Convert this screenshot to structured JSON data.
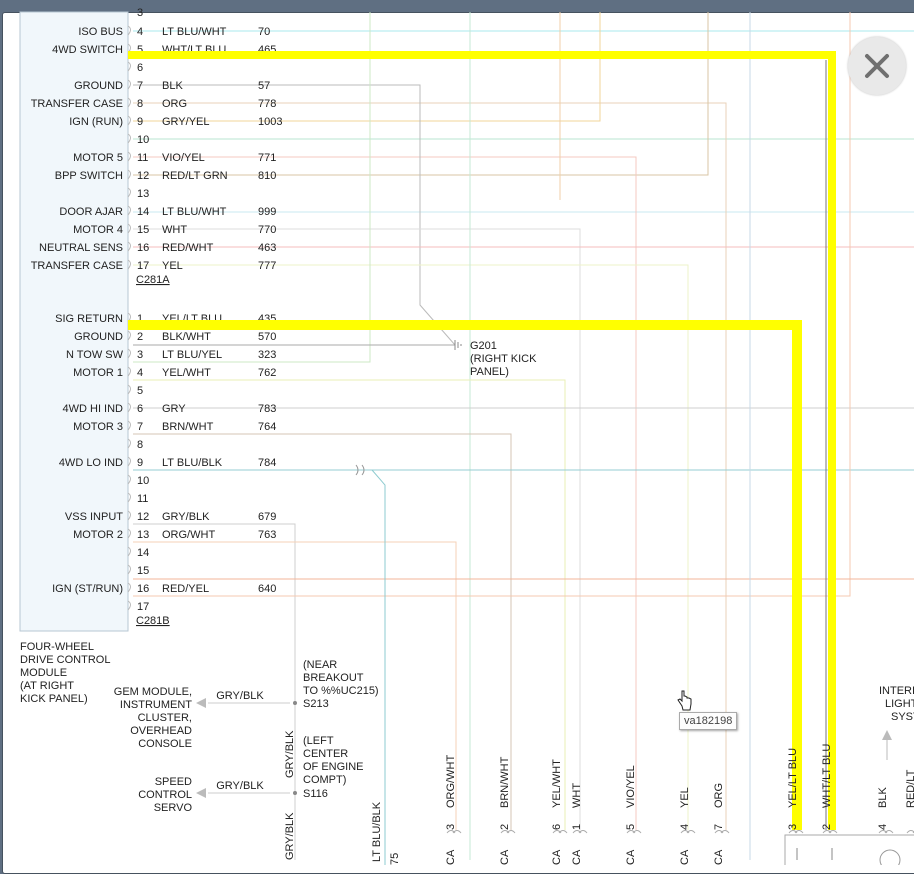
{
  "connector_a": {
    "name": "C281A",
    "pins": [
      {
        "pin": "4",
        "color": "LT BLU/WHT",
        "circuit": "70",
        "label": "ISO BUS"
      },
      {
        "pin": "5",
        "color": "WHT/LT BLU",
        "circuit": "465",
        "label": "4WD SWITCH"
      },
      {
        "pin": "6",
        "color": "",
        "circuit": "",
        "label": ""
      },
      {
        "pin": "7",
        "color": "BLK",
        "circuit": "57",
        "label": "GROUND"
      },
      {
        "pin": "8",
        "color": "ORG",
        "circuit": "778",
        "label": "TRANSFER CASE"
      },
      {
        "pin": "9",
        "color": "GRY/YEL",
        "circuit": "1003",
        "label": "IGN (RUN)"
      },
      {
        "pin": "10",
        "color": "",
        "circuit": "",
        "label": ""
      },
      {
        "pin": "11",
        "color": "VIO/YEL",
        "circuit": "771",
        "label": "MOTOR 5"
      },
      {
        "pin": "12",
        "color": "RED/LT GRN",
        "circuit": "810",
        "label": "BPP SWITCH"
      },
      {
        "pin": "13",
        "color": "",
        "circuit": "",
        "label": ""
      },
      {
        "pin": "14",
        "color": "LT BLU/WHT",
        "circuit": "999",
        "label": "DOOR AJAR"
      },
      {
        "pin": "15",
        "color": "WHT",
        "circuit": "770",
        "label": "MOTOR 4"
      },
      {
        "pin": "16",
        "color": "RED/WHT",
        "circuit": "463",
        "label": "NEUTRAL SENS"
      },
      {
        "pin": "17",
        "color": "YEL",
        "circuit": "777",
        "label": "TRANSFER CASE"
      }
    ]
  },
  "connector_b": {
    "name": "C281B",
    "pins": [
      {
        "pin": "1",
        "color": "YEL/LT BLU",
        "circuit": "435",
        "label": "SIG RETURN"
      },
      {
        "pin": "2",
        "color": "BLK/WHT",
        "circuit": "570",
        "label": "GROUND"
      },
      {
        "pin": "3",
        "color": "LT BLU/YEL",
        "circuit": "323",
        "label": "N TOW SW"
      },
      {
        "pin": "4",
        "color": "YEL/WHT",
        "circuit": "762",
        "label": "MOTOR 1"
      },
      {
        "pin": "5",
        "color": "",
        "circuit": "",
        "label": ""
      },
      {
        "pin": "6",
        "color": "GRY",
        "circuit": "783",
        "label": "4WD HI IND"
      },
      {
        "pin": "7",
        "color": "BRN/WHT",
        "circuit": "764",
        "label": "MOTOR 3"
      },
      {
        "pin": "8",
        "color": "",
        "circuit": "",
        "label": ""
      },
      {
        "pin": "9",
        "color": "LT BLU/BLK",
        "circuit": "784",
        "label": "4WD LO IND"
      },
      {
        "pin": "10",
        "color": "",
        "circuit": "",
        "label": ""
      },
      {
        "pin": "11",
        "color": "",
        "circuit": "",
        "label": ""
      },
      {
        "pin": "12",
        "color": "GRY/BLK",
        "circuit": "679",
        "label": "VSS INPUT"
      },
      {
        "pin": "13",
        "color": "ORG/WHT",
        "circuit": "763",
        "label": "MOTOR 2"
      },
      {
        "pin": "14",
        "color": "",
        "circuit": "",
        "label": ""
      },
      {
        "pin": "15",
        "color": "",
        "circuit": "",
        "label": ""
      },
      {
        "pin": "16",
        "color": "RED/YEL",
        "circuit": "640",
        "label": "IGN (ST/RUN)"
      },
      {
        "pin": "17",
        "color": "",
        "circuit": "",
        "label": ""
      }
    ]
  },
  "module_label": [
    "FOUR-WHEEL",
    "DRIVE CONTROL",
    "MODULE",
    "(AT RIGHT",
    "KICK PANEL)"
  ],
  "ground_label": [
    "G201",
    "(RIGHT KICK",
    "PANEL)"
  ],
  "splice_s213": {
    "note": [
      "(NEAR",
      "BREAKOUT",
      "TO %%UC215)"
    ],
    "id": "S213",
    "wire": "GRY/BLK",
    "dest": [
      "GEM MODULE,",
      "INSTRUMENT",
      "CLUSTER,",
      "OVERHEAD",
      "CONSOLE"
    ]
  },
  "splice_s116": {
    "note": [
      "(LEFT",
      "CENTER",
      "OF ENGINE",
      "COMPT)"
    ],
    "id": "S116",
    "wire": "GRY/BLK",
    "dest": [
      "SPEED",
      "CONTROL",
      "SERVO"
    ]
  },
  "vertical_gryblk_labels": [
    "GRY/BLK",
    "GRY/BLK"
  ],
  "vertical_ltblublk": "LT BLU/BLK",
  "vertical_partial": "75",
  "bottom_wires": [
    {
      "pin": "3",
      "color": "ORG/WHT"
    },
    {
      "pin": "2",
      "color": "BRN/WHT"
    },
    {
      "pin": "6",
      "color": "YEL/WHT"
    },
    {
      "pin": "1",
      "color": "WHT"
    },
    {
      "pin": "5",
      "color": "VIO/YEL"
    },
    {
      "pin": "4",
      "color": "YEL"
    },
    {
      "pin": "7",
      "color": "ORG"
    },
    {
      "pin": "3",
      "color": "YEL/LT BLU"
    },
    {
      "pin": "2",
      "color": "WHT/LT BLU"
    },
    {
      "pin": "4",
      "color": "BLK"
    },
    {
      "pin": "",
      "color": "RED/LT"
    }
  ],
  "bottom_ca": [
    "CA",
    "CA",
    "CA",
    "CA",
    "CA",
    "CA",
    "CA"
  ],
  "right_label": [
    "INTERI",
    "LIGHT",
    "SYST"
  ],
  "tooltip": "va182198",
  "highlight_color": "#ffff00"
}
